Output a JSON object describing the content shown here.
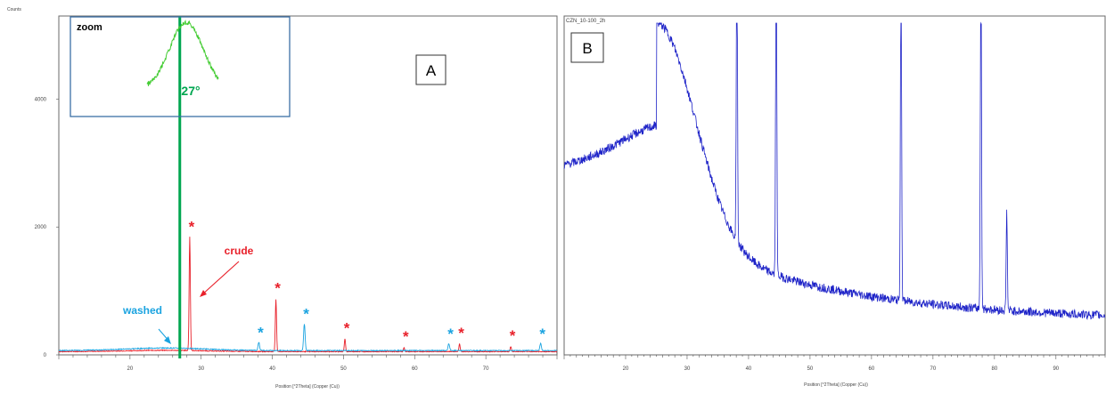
{
  "panel_a": {
    "panel_label": "A",
    "y_axis_title": "Counts",
    "x_axis_title": "Position [°2Theta] (Copper (Cu))",
    "zoom_label": "zoom",
    "marker_label": "27°",
    "crude_label": "crude",
    "washed_label": "washed",
    "star_glyph": "*"
  },
  "panel_b": {
    "panel_label": "B",
    "corner_title": "CZN_10-100_2h",
    "x_axis_title": "Position [°2Theta] (Copper (Cu))"
  },
  "colors": {
    "crude": "#e8202a",
    "washed": "#1aa3e0",
    "panel_b_trace": "#1f24c8",
    "marker_line": "#00a650",
    "zoom_trace": "#44cc33",
    "box_border": "#3b6fa6"
  },
  "chart_data": [
    {
      "type": "line",
      "title": "",
      "xlabel": "Position [°2Theta] (Copper (Cu))",
      "ylabel": "Counts",
      "xlim": [
        10,
        80
      ],
      "ylim": [
        0,
        5300
      ],
      "x_ticks": [
        20,
        30,
        40,
        50,
        60,
        70
      ],
      "y_ticks": [
        0,
        2000,
        4000
      ],
      "grid": false,
      "series": [
        {
          "name": "crude",
          "peaks": [
            {
              "x": 28.4,
              "y": 1780
            },
            {
              "x": 40.5,
              "y": 820
            },
            {
              "x": 50.2,
              "y": 200
            },
            {
              "x": 58.5,
              "y": 60
            },
            {
              "x": 66.3,
              "y": 120
            },
            {
              "x": 73.5,
              "y": 80
            }
          ]
        },
        {
          "name": "washed",
          "peaks": [
            {
              "x": 38.1,
              "y": 130
            },
            {
              "x": 44.5,
              "y": 420
            },
            {
              "x": 64.8,
              "y": 110
            },
            {
              "x": 77.7,
              "y": 110
            }
          ]
        }
      ],
      "annotations": [
        {
          "text": "27°",
          "x": 27
        },
        {
          "text": "*",
          "x": 28.4,
          "series": "crude"
        },
        {
          "text": "*",
          "x": 40.5,
          "series": "crude"
        },
        {
          "text": "*",
          "x": 50.2,
          "series": "crude"
        },
        {
          "text": "*",
          "x": 58.5,
          "series": "crude"
        },
        {
          "text": "*",
          "x": 66.3,
          "series": "crude"
        },
        {
          "text": "*",
          "x": 73.5,
          "series": "crude"
        },
        {
          "text": "*",
          "x": 38.1,
          "series": "washed"
        },
        {
          "text": "*",
          "x": 44.5,
          "series": "washed"
        },
        {
          "text": "*",
          "x": 64.8,
          "series": "washed"
        },
        {
          "text": "*",
          "x": 77.7,
          "series": "washed"
        }
      ]
    },
    {
      "type": "line",
      "title": "CZN_10-100_2h",
      "xlabel": "Position [°2Theta] (Copper (Cu))",
      "ylabel": "",
      "xlim": [
        10,
        98
      ],
      "x_ticks": [
        20,
        30,
        40,
        50,
        60,
        70,
        80,
        90
      ],
      "grid": false,
      "series": [
        {
          "name": "",
          "peaks": [
            {
              "x": 38.1,
              "height": "strong"
            },
            {
              "x": 44.5,
              "height": "strong"
            },
            {
              "x": 64.8,
              "height": "strong"
            },
            {
              "x": 77.8,
              "height": "strong"
            },
            {
              "x": 82.0,
              "height": "weak"
            }
          ]
        }
      ]
    }
  ]
}
